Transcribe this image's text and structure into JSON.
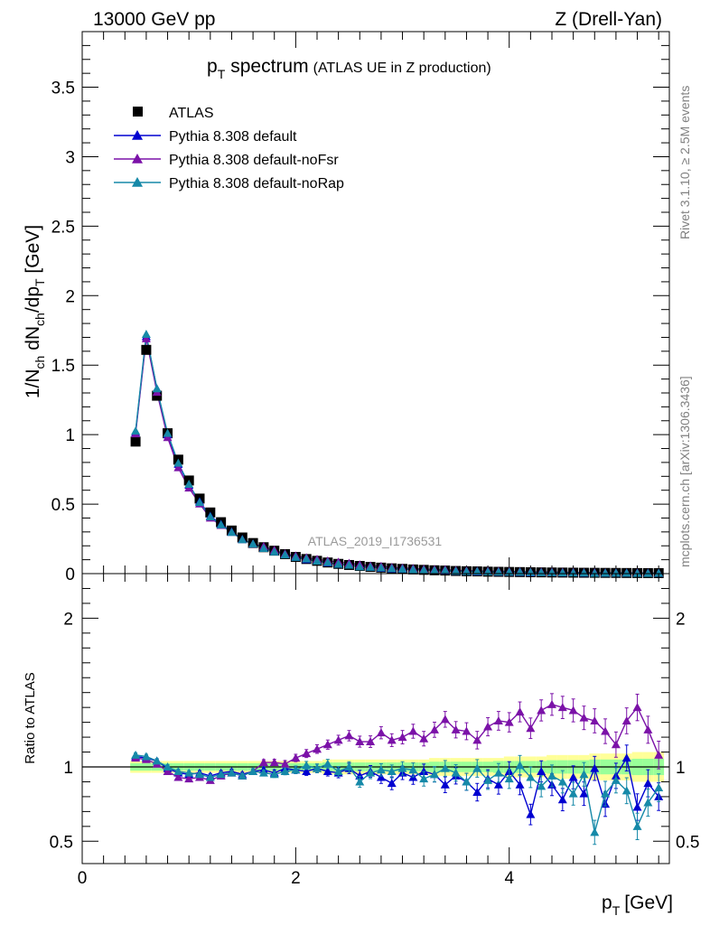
{
  "header": {
    "energy_label": "13000 GeV pp",
    "process_label": "Z (Drell-Yan)"
  },
  "side_labels": {
    "rivet": "Rivet 3.1.10, ≥ 2.5M events",
    "mcplots": "mcplots.cern.ch [arXiv:1306.3436]"
  },
  "watermark": "ATLAS_2019_I1736531",
  "chart_data": [
    {
      "panel": "main",
      "type": "scatter",
      "title_main": "p",
      "title_sub": "T",
      "title_word": "spectrum",
      "title_extra": "(ATLAS UE in Z production)",
      "ylabel": "1/N_ch dN_ch/dp_T [GeV]",
      "xlim": [
        0,
        5.5
      ],
      "ylim": [
        0,
        3.9
      ],
      "xticks": [
        "0",
        "2",
        "4"
      ],
      "yticks": [
        "0",
        "0.5",
        "1",
        "1.5",
        "2",
        "2.5",
        "3",
        "3.5"
      ],
      "legend_position": "top-left",
      "colors": {
        "data": "#000000",
        "default": "#0000d0",
        "noFsr": "#7b12a8",
        "noRap": "#1689a8"
      },
      "legend": [
        {
          "key": "data",
          "label": "ATLAS"
        },
        {
          "key": "default",
          "label": "Pythia 8.308 default"
        },
        {
          "key": "noFsr",
          "label": "Pythia 8.308 default-noFsr"
        },
        {
          "key": "noRap",
          "label": "Pythia 8.308 default-noRap"
        }
      ],
      "x": [
        0.5,
        0.6,
        0.7,
        0.8,
        0.9,
        1.0,
        1.1,
        1.2,
        1.3,
        1.4,
        1.5,
        1.6,
        1.7,
        1.8,
        1.9,
        2.0,
        2.1,
        2.2,
        2.3,
        2.4,
        2.5,
        2.6,
        2.7,
        2.8,
        2.9,
        3.0,
        3.1,
        3.2,
        3.3,
        3.4,
        3.5,
        3.6,
        3.7,
        3.8,
        3.9,
        4.0,
        4.1,
        4.2,
        4.3,
        4.4,
        4.5,
        4.6,
        4.7,
        4.8,
        4.9,
        5.0,
        5.1,
        5.2,
        5.3,
        5.4
      ],
      "data": [
        0.95,
        1.61,
        1.28,
        1.01,
        0.82,
        0.67,
        0.54,
        0.44,
        0.37,
        0.31,
        0.26,
        0.22,
        0.19,
        0.165,
        0.14,
        0.12,
        0.105,
        0.092,
        0.08,
        0.07,
        0.062,
        0.055,
        0.048,
        0.043,
        0.038,
        0.034,
        0.03,
        0.027,
        0.024,
        0.022,
        0.019,
        0.017,
        0.016,
        0.014,
        0.013,
        0.012,
        0.011,
        0.0098,
        0.009,
        0.0082,
        0.0075,
        0.0068,
        0.0062,
        0.0057,
        0.0052,
        0.0048,
        0.0044,
        0.004,
        0.0037,
        0.0034
      ]
    },
    {
      "panel": "ratio",
      "type": "line",
      "ylabel": "Ratio to ATLAS",
      "xlabel_main": "p",
      "xlabel_sub": "T",
      "xlabel_unit": "[GeV]",
      "xlim": [
        0,
        5.5
      ],
      "ylim": [
        0.35,
        2.3
      ],
      "xticks": [
        "0",
        "2",
        "4"
      ],
      "yticks": [
        "0.5",
        "1",
        "2"
      ],
      "series": [
        {
          "key": "default",
          "values": [
            1.07,
            1.06,
            1.04,
            0.99,
            0.96,
            0.95,
            0.96,
            0.94,
            0.96,
            0.97,
            0.95,
            0.97,
            0.98,
            0.96,
            0.99,
            0.98,
            0.97,
            0.99,
            0.97,
            0.96,
            0.99,
            0.94,
            0.97,
            0.93,
            0.89,
            0.96,
            0.93,
            0.97,
            0.95,
            0.88,
            0.94,
            0.9,
            0.83,
            0.92,
            0.88,
            0.97,
            0.88,
            0.68,
            0.97,
            0.88,
            0.78,
            0.93,
            0.82,
            0.99,
            0.75,
            0.94,
            1.06,
            0.73,
            0.89,
            0.8
          ]
        },
        {
          "key": "noFsr",
          "values": [
            1.06,
            1.05,
            1.02,
            0.97,
            0.93,
            0.92,
            0.93,
            0.91,
            0.94,
            0.96,
            0.94,
            0.97,
            1.03,
            1.03,
            1.02,
            1.06,
            1.09,
            1.12,
            1.15,
            1.18,
            1.21,
            1.17,
            1.17,
            1.23,
            1.18,
            1.2,
            1.24,
            1.19,
            1.25,
            1.32,
            1.25,
            1.24,
            1.18,
            1.27,
            1.31,
            1.3,
            1.37,
            1.26,
            1.38,
            1.42,
            1.4,
            1.38,
            1.33,
            1.31,
            1.24,
            1.15,
            1.31,
            1.4,
            1.25,
            1.08
          ]
        },
        {
          "key": "noRap",
          "values": [
            1.08,
            1.07,
            1.04,
            1.0,
            0.97,
            0.96,
            0.95,
            0.93,
            0.95,
            0.96,
            0.94,
            0.97,
            0.96,
            0.95,
            0.97,
            0.98,
            1.01,
            0.99,
            1.02,
            0.97,
            1.0,
            0.9,
            0.96,
            0.98,
            0.97,
            0.99,
            0.98,
            0.92,
            0.95,
            0.99,
            0.96,
            0.9,
            0.99,
            0.91,
            0.96,
            0.92,
            1.01,
            0.93,
            0.87,
            0.94,
            0.9,
            0.82,
            0.95,
            0.56,
            0.82,
            0.91,
            0.84,
            0.6,
            0.76,
            0.86
          ]
        },
        {
          "key": "band_outer",
          "values": [
            0.96,
            0.96,
            0.96,
            0.96,
            0.96,
            0.96,
            0.96,
            0.96,
            0.96,
            0.96,
            0.96,
            0.96,
            0.96,
            0.96,
            0.96,
            0.96,
            0.96,
            0.96,
            0.95,
            0.95,
            0.95,
            0.95,
            0.95,
            0.95,
            0.95,
            0.95,
            0.95,
            0.95,
            0.94,
            0.94,
            0.94,
            0.94,
            0.94,
            0.94,
            0.94,
            0.93,
            0.93,
            0.93,
            0.93,
            0.92,
            0.92,
            0.92,
            0.92,
            0.91,
            0.91,
            0.91,
            0.91,
            0.9,
            0.9,
            0.9
          ]
        },
        {
          "key": "band_inner",
          "values": [
            0.975,
            0.975,
            0.975,
            0.975,
            0.975,
            0.975,
            0.975,
            0.975,
            0.975,
            0.975,
            0.975,
            0.975,
            0.975,
            0.975,
            0.975,
            0.975,
            0.975,
            0.975,
            0.97,
            0.97,
            0.97,
            0.97,
            0.97,
            0.97,
            0.97,
            0.97,
            0.97,
            0.97,
            0.965,
            0.965,
            0.965,
            0.965,
            0.965,
            0.965,
            0.96,
            0.96,
            0.96,
            0.96,
            0.96,
            0.955,
            0.955,
            0.955,
            0.955,
            0.95,
            0.95,
            0.95,
            0.95,
            0.945,
            0.945,
            0.945
          ]
        }
      ]
    }
  ]
}
